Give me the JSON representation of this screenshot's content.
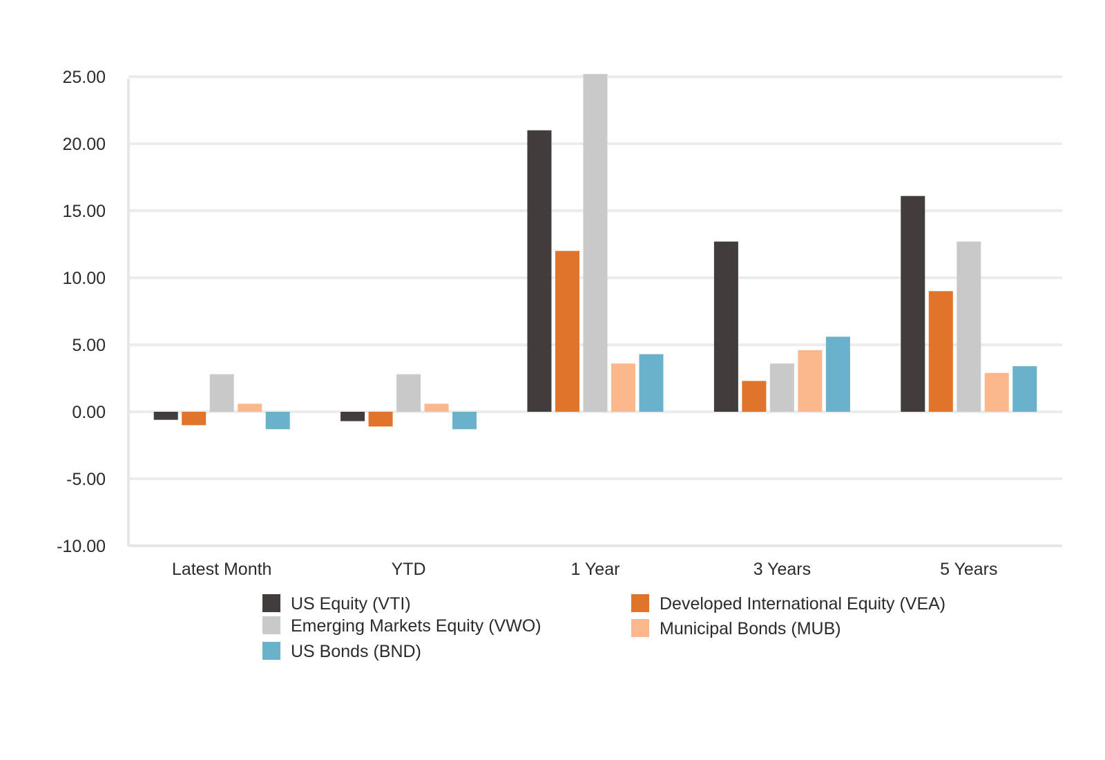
{
  "chart_data": {
    "type": "bar",
    "categories": [
      "Latest Month",
      "YTD",
      "1 Year",
      "3 Years",
      "5 Years"
    ],
    "series": [
      {
        "name": "US Equity (VTI)",
        "color": "#433c3c",
        "values": [
          -0.6,
          -0.7,
          21.0,
          12.7,
          16.1
        ]
      },
      {
        "name": "Developed International Equity (VEA)",
        "color": "#e0742b",
        "values": [
          -1.0,
          -1.1,
          12.0,
          2.3,
          9.0
        ]
      },
      {
        "name": "Emerging Markets Equity (VWO)",
        "color": "#c9c9ca",
        "values": [
          2.8,
          2.8,
          25.2,
          3.6,
          12.7
        ]
      },
      {
        "name": "Municipal Bonds (MUB)",
        "color": "#fbb88c",
        "values": [
          0.6,
          0.6,
          3.6,
          4.6,
          2.9
        ]
      },
      {
        "name": "US Bonds (BND)",
        "color": "#6ab1cb",
        "values": [
          -1.3,
          -1.3,
          4.3,
          5.6,
          3.4
        ]
      }
    ],
    "y_ticks": [
      "25.00",
      "20.00",
      "15.00",
      "10.00",
      "5.00",
      "0.00",
      "-5.00",
      "-10.00"
    ],
    "ylim": [
      -10,
      25
    ],
    "grid": true,
    "legend_position": "bottom",
    "title": "",
    "xlabel": "",
    "ylabel": ""
  }
}
